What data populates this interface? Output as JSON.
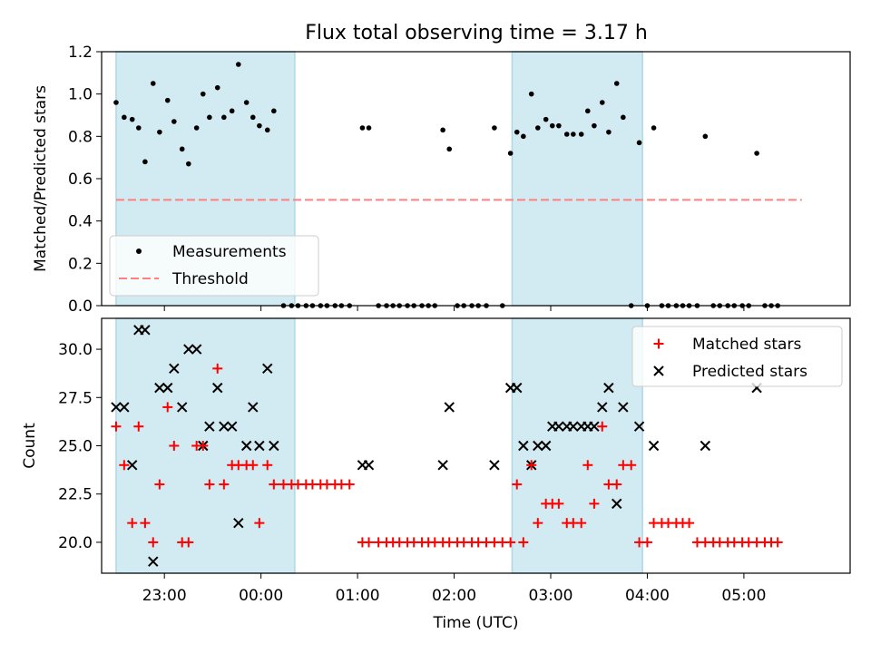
{
  "title": "Flux total observing time = 3.17 h",
  "colors": {
    "span": "#add8e6",
    "measurement": "#000000",
    "threshold": "#ff8080",
    "matched": "#ff0000",
    "predicted": "#000000"
  },
  "chart_data": [
    {
      "type": "scatter",
      "panel": "top",
      "ylabel": "Matched/Predicted stars",
      "xlabel": "",
      "xlim": [
        "22:21",
        "06:06"
      ],
      "ylim": [
        0,
        1.2
      ],
      "yticks": [
        "0.0",
        "0.2",
        "0.4",
        "0.6",
        "0.8",
        "1.0",
        "1.2"
      ],
      "legend_position": "lower-left",
      "legend": {
        "measurements": "Measurements",
        "threshold": "Threshold"
      },
      "threshold": {
        "value": 0.5,
        "x_start": "22:30",
        "x_end": "05:36"
      },
      "highlight_spans": [
        [
          "22:30",
          "00:21"
        ],
        [
          "02:36",
          "03:57"
        ]
      ],
      "series": [
        {
          "name": "Measurements",
          "points": [
            [
              "22:30",
              0.96
            ],
            [
              "22:35",
              0.89
            ],
            [
              "22:40",
              0.88
            ],
            [
              "22:44",
              0.84
            ],
            [
              "22:48",
              0.68
            ],
            [
              "22:53",
              1.05
            ],
            [
              "22:57",
              0.82
            ],
            [
              "23:02",
              0.97
            ],
            [
              "23:06",
              0.87
            ],
            [
              "23:11",
              0.74
            ],
            [
              "23:15",
              0.67
            ],
            [
              "23:20",
              0.84
            ],
            [
              "23:24",
              1.0
            ],
            [
              "23:28",
              0.89
            ],
            [
              "23:33",
              1.03
            ],
            [
              "23:37",
              0.89
            ],
            [
              "23:42",
              0.92
            ],
            [
              "23:46",
              1.14
            ],
            [
              "23:51",
              0.96
            ],
            [
              "23:55",
              0.89
            ],
            [
              "23:59",
              0.85
            ],
            [
              "00:04",
              0.83
            ],
            [
              "00:08",
              0.92
            ],
            [
              "00:14",
              0.0
            ],
            [
              "00:19",
              0.0
            ],
            [
              "00:23",
              0.0
            ],
            [
              "00:28",
              0.0
            ],
            [
              "00:32",
              0.0
            ],
            [
              "00:37",
              0.0
            ],
            [
              "00:41",
              0.0
            ],
            [
              "00:46",
              0.0
            ],
            [
              "00:50",
              0.0
            ],
            [
              "00:55",
              0.0
            ],
            [
              "01:03",
              0.84
            ],
            [
              "01:07",
              0.84
            ],
            [
              "01:13",
              0.0
            ],
            [
              "01:18",
              0.0
            ],
            [
              "01:22",
              0.0
            ],
            [
              "01:26",
              0.0
            ],
            [
              "01:31",
              0.0
            ],
            [
              "01:35",
              0.0
            ],
            [
              "01:40",
              0.0
            ],
            [
              "01:44",
              0.0
            ],
            [
              "01:48",
              0.0
            ],
            [
              "01:53",
              0.83
            ],
            [
              "01:57",
              0.74
            ],
            [
              "02:02",
              0.0
            ],
            [
              "02:06",
              0.0
            ],
            [
              "02:11",
              0.0
            ],
            [
              "02:15",
              0.0
            ],
            [
              "02:20",
              0.0
            ],
            [
              "02:25",
              0.84
            ],
            [
              "02:30",
              0.0
            ],
            [
              "02:35",
              0.72
            ],
            [
              "02:39",
              0.82
            ],
            [
              "02:43",
              0.8
            ],
            [
              "02:48",
              1.0
            ],
            [
              "02:52",
              0.84
            ],
            [
              "02:57",
              0.88
            ],
            [
              "03:01",
              0.85
            ],
            [
              "03:05",
              0.85
            ],
            [
              "03:10",
              0.81
            ],
            [
              "03:14",
              0.81
            ],
            [
              "03:19",
              0.81
            ],
            [
              "03:23",
              0.92
            ],
            [
              "03:27",
              0.85
            ],
            [
              "03:32",
              0.96
            ],
            [
              "03:36",
              0.82
            ],
            [
              "03:41",
              1.05
            ],
            [
              "03:45",
              0.89
            ],
            [
              "03:50",
              0.0
            ],
            [
              "03:55",
              0.77
            ],
            [
              "04:00",
              0.0
            ],
            [
              "04:04",
              0.84
            ],
            [
              "04:09",
              0.0
            ],
            [
              "04:13",
              0.0
            ],
            [
              "04:18",
              0.0
            ],
            [
              "04:22",
              0.0
            ],
            [
              "04:26",
              0.0
            ],
            [
              "04:31",
              0.0
            ],
            [
              "04:36",
              0.8
            ],
            [
              "04:41",
              0.0
            ],
            [
              "04:45",
              0.0
            ],
            [
              "04:50",
              0.0
            ],
            [
              "04:54",
              0.0
            ],
            [
              "04:59",
              0.0
            ],
            [
              "05:03",
              0.0
            ],
            [
              "05:08",
              0.72
            ],
            [
              "05:13",
              0.0
            ],
            [
              "05:17",
              0.0
            ],
            [
              "05:21",
              0.0
            ]
          ]
        }
      ]
    },
    {
      "type": "scatter",
      "panel": "bottom",
      "ylabel": "Count",
      "xlabel": "Time (UTC)",
      "xlim": [
        "22:21",
        "06:06"
      ],
      "ylim": [
        18.4,
        31.6
      ],
      "yticks": [
        "20.0",
        "22.5",
        "25.0",
        "27.5",
        "30.0"
      ],
      "xticks": [
        "23:00",
        "00:00",
        "01:00",
        "02:00",
        "03:00",
        "04:00",
        "05:00"
      ],
      "legend_position": "upper-right",
      "highlight_spans": [
        [
          "22:30",
          "00:21"
        ],
        [
          "02:36",
          "03:57"
        ]
      ],
      "series": [
        {
          "name": "Matched stars",
          "marker": "+",
          "points": [
            [
              "22:30",
              26
            ],
            [
              "22:35",
              24
            ],
            [
              "22:40",
              21
            ],
            [
              "22:44",
              26
            ],
            [
              "22:48",
              21
            ],
            [
              "22:53",
              20
            ],
            [
              "22:57",
              23
            ],
            [
              "23:02",
              27
            ],
            [
              "23:06",
              25
            ],
            [
              "23:11",
              20
            ],
            [
              "23:15",
              20
            ],
            [
              "23:20",
              25
            ],
            [
              "23:24",
              25
            ],
            [
              "23:28",
              23
            ],
            [
              "23:33",
              29
            ],
            [
              "23:37",
              23
            ],
            [
              "23:42",
              24
            ],
            [
              "23:46",
              24
            ],
            [
              "23:51",
              24
            ],
            [
              "23:55",
              24
            ],
            [
              "23:59",
              21
            ],
            [
              "00:04",
              24
            ],
            [
              "00:08",
              23
            ],
            [
              "00:14",
              23
            ],
            [
              "00:19",
              23
            ],
            [
              "00:23",
              23
            ],
            [
              "00:28",
              23
            ],
            [
              "00:32",
              23
            ],
            [
              "00:37",
              23
            ],
            [
              "00:41",
              23
            ],
            [
              "00:46",
              23
            ],
            [
              "00:50",
              23
            ],
            [
              "00:55",
              23
            ],
            [
              "01:03",
              20
            ],
            [
              "01:07",
              20
            ],
            [
              "01:13",
              20
            ],
            [
              "01:18",
              20
            ],
            [
              "01:22",
              20
            ],
            [
              "01:26",
              20
            ],
            [
              "01:31",
              20
            ],
            [
              "01:35",
              20
            ],
            [
              "01:40",
              20
            ],
            [
              "01:44",
              20
            ],
            [
              "01:48",
              20
            ],
            [
              "01:53",
              20
            ],
            [
              "01:57",
              20
            ],
            [
              "02:02",
              20
            ],
            [
              "02:06",
              20
            ],
            [
              "02:11",
              20
            ],
            [
              "02:15",
              20
            ],
            [
              "02:20",
              20
            ],
            [
              "02:25",
              20
            ],
            [
              "02:30",
              20
            ],
            [
              "02:35",
              20
            ],
            [
              "02:39",
              23
            ],
            [
              "02:43",
              20
            ],
            [
              "02:48",
              24
            ],
            [
              "02:52",
              21
            ],
            [
              "02:57",
              22
            ],
            [
              "03:01",
              22
            ],
            [
              "03:05",
              22
            ],
            [
              "03:10",
              21
            ],
            [
              "03:14",
              21
            ],
            [
              "03:19",
              21
            ],
            [
              "03:23",
              24
            ],
            [
              "03:27",
              22
            ],
            [
              "03:32",
              26
            ],
            [
              "03:36",
              23
            ],
            [
              "03:41",
              23
            ],
            [
              "03:45",
              24
            ],
            [
              "03:50",
              24
            ],
            [
              "03:55",
              20
            ],
            [
              "04:00",
              20
            ],
            [
              "04:04",
              21
            ],
            [
              "04:09",
              21
            ],
            [
              "04:13",
              21
            ],
            [
              "04:18",
              21
            ],
            [
              "04:22",
              21
            ],
            [
              "04:26",
              21
            ],
            [
              "04:31",
              20
            ],
            [
              "04:36",
              20
            ],
            [
              "04:41",
              20
            ],
            [
              "04:45",
              20
            ],
            [
              "04:50",
              20
            ],
            [
              "04:54",
              20
            ],
            [
              "04:59",
              20
            ],
            [
              "05:03",
              20
            ],
            [
              "05:08",
              20
            ],
            [
              "05:13",
              20
            ],
            [
              "05:17",
              20
            ],
            [
              "05:21",
              20
            ]
          ]
        },
        {
          "name": "Predicted stars",
          "marker": "x",
          "points": [
            [
              "22:30",
              27
            ],
            [
              "22:35",
              27
            ],
            [
              "22:40",
              24
            ],
            [
              "22:44",
              31
            ],
            [
              "22:48",
              31
            ],
            [
              "22:53",
              19
            ],
            [
              "22:57",
              28
            ],
            [
              "23:02",
              28
            ],
            [
              "23:06",
              29
            ],
            [
              "23:11",
              27
            ],
            [
              "23:15",
              30
            ],
            [
              "23:20",
              30
            ],
            [
              "23:24",
              25
            ],
            [
              "23:28",
              26
            ],
            [
              "23:33",
              28
            ],
            [
              "23:37",
              26
            ],
            [
              "23:42",
              26
            ],
            [
              "23:46",
              21
            ],
            [
              "23:51",
              25
            ],
            [
              "23:55",
              27
            ],
            [
              "23:59",
              25
            ],
            [
              "00:04",
              29
            ],
            [
              "00:08",
              25
            ],
            [
              "01:03",
              24
            ],
            [
              "01:07",
              24
            ],
            [
              "01:53",
              24
            ],
            [
              "01:57",
              27
            ],
            [
              "02:25",
              24
            ],
            [
              "02:35",
              28
            ],
            [
              "02:39",
              28
            ],
            [
              "02:43",
              25
            ],
            [
              "02:48",
              24
            ],
            [
              "02:52",
              25
            ],
            [
              "02:57",
              25
            ],
            [
              "03:01",
              26
            ],
            [
              "03:05",
              26
            ],
            [
              "03:10",
              26
            ],
            [
              "03:14",
              26
            ],
            [
              "03:19",
              26
            ],
            [
              "03:23",
              26
            ],
            [
              "03:27",
              26
            ],
            [
              "03:32",
              27
            ],
            [
              "03:36",
              28
            ],
            [
              "03:41",
              22
            ],
            [
              "03:45",
              27
            ],
            [
              "03:55",
              26
            ],
            [
              "04:04",
              25
            ],
            [
              "04:36",
              25
            ],
            [
              "05:08",
              28
            ]
          ]
        }
      ]
    }
  ]
}
